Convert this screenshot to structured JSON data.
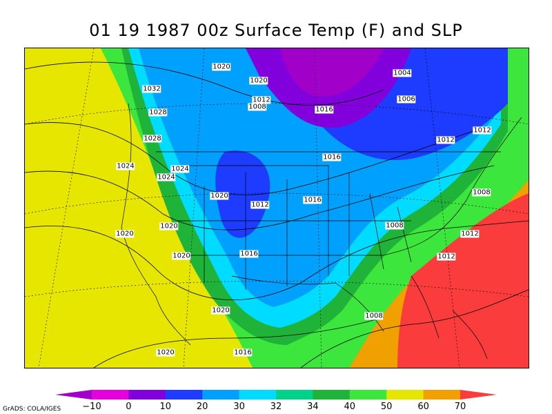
{
  "title": "01 19 1987 00z Surface Temp (F) and SLP",
  "credit": "GrADS: COLA/IGES",
  "colorbar": {
    "ticks": [
      "-10",
      "0",
      "10",
      "20",
      "30",
      "32",
      "34",
      "40",
      "50",
      "60",
      "70"
    ],
    "colors": [
      "#a000c8",
      "#e600dc",
      "#8200dc",
      "#1e3cff",
      "#00a0ff",
      "#00dcff",
      "#00d28c",
      "#20b33a",
      "#3ce63c",
      "#e6e600",
      "#f0a000",
      "#fa3c3c"
    ]
  },
  "isobar_labels": [
    "1020",
    "1004",
    "1032",
    "1020",
    "1012",
    "1006",
    "1008",
    "1016",
    "1028",
    "1012",
    "1028",
    "1012",
    "1024",
    "1016",
    "1024",
    "1024",
    "1008",
    "1020",
    "1012",
    "1016",
    "1020",
    "1008",
    "1020",
    "1012",
    "1020",
    "1016",
    "1012",
    "1020",
    "1008",
    "1020",
    "1016"
  ]
}
